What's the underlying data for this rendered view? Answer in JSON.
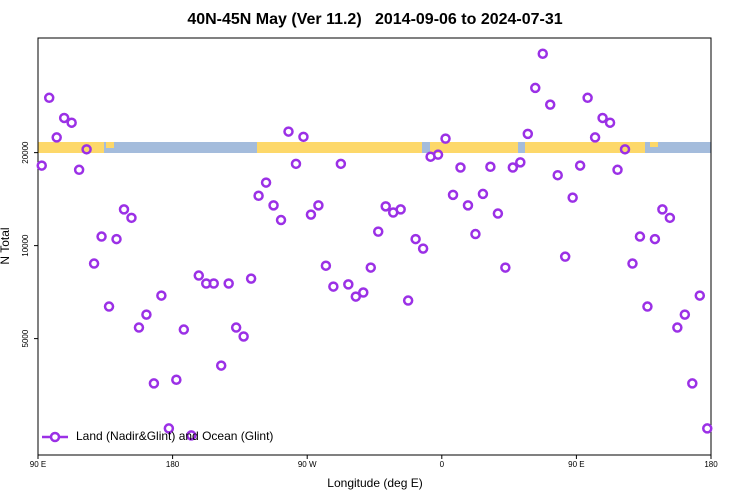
{
  "chart_data": {
    "type": "scatter",
    "title": "40N-45N May (Ver 11.2)   2014-09-06 to 2024-07-31",
    "x_label": "Longitude (deg E)",
    "y_label": "N Total",
    "log_y": true,
    "legend": "bottom-left",
    "xlim": [
      90,
      540
    ],
    "ylim": [
      2100,
      47000
    ],
    "xticks": [
      {
        "value": 90,
        "label": "90 E"
      },
      180,
      {
        "value": 270,
        "label": "90 W"
      },
      {
        "value": 360,
        "label": "0"
      },
      {
        "value": 450,
        "label": "90 E"
      },
      {
        "value": 540,
        "label": "180"
      }
    ],
    "yticks": [
      5000,
      10000,
      20000
    ],
    "series": [
      {
        "name": "Land (Nadir&Glint) and Ocean (Glint)",
        "color": "#9b30e6",
        "x": [
          92.5,
          97.5,
          102.5,
          107.5,
          112.5,
          117.5,
          122.5,
          127.5,
          132.5,
          137.5,
          142.5,
          147.5,
          152.5,
          157.5,
          162.5,
          167.5,
          172.5,
          177.5,
          182.5,
          187.5,
          192.5,
          197.5,
          202.5,
          207.5,
          212.5,
          217.5,
          222.5,
          227.5,
          232.5,
          237.5,
          242.5,
          247.5,
          252.5,
          257.5,
          262.5,
          267.5,
          272.5,
          277.5,
          282.5,
          287.5,
          292.5,
          297.5,
          302.5,
          307.5,
          312.5,
          317.5,
          322.5,
          327.5,
          332.5,
          337.5,
          342.5,
          347.5,
          352.5,
          357.5,
          362.5,
          367.5,
          372.5,
          377.5,
          382.5,
          387.5,
          392.5,
          397.5,
          402.5,
          407.5,
          412.5,
          417.5,
          422.5,
          427.5,
          432.5,
          437.5,
          442.5,
          447.5,
          452.5,
          457.5,
          462.5,
          467.5,
          472.5,
          477.5,
          482.5,
          487.5,
          492.5,
          497.5,
          502.5,
          507.5,
          512.5,
          517.5,
          522.5,
          527.5,
          532.5,
          537.5
        ],
        "values": [
          18160,
          30100,
          22400,
          25900,
          25000,
          17600,
          20500,
          8750,
          10700,
          6350,
          10500,
          13100,
          12300,
          5430,
          5980,
          3580,
          6890,
          2560,
          3680,
          5350,
          2430,
          8000,
          7540,
          7540,
          4090,
          7540,
          5430,
          5080,
          7820,
          14500,
          16000,
          13500,
          12100,
          23400,
          18400,
          22500,
          12600,
          13500,
          8610,
          7370,
          18400,
          7490,
          6840,
          7050,
          8490,
          11100,
          13400,
          12800,
          13100,
          6640,
          10500,
          9780,
          19400,
          19700,
          22200,
          14600,
          17900,
          13500,
          10900,
          14700,
          18000,
          12700,
          8490,
          17900,
          18600,
          23000,
          32400,
          41800,
          28600,
          16900,
          9210,
          14300,
          18160,
          30100,
          22400,
          25900,
          25000,
          17600,
          20500,
          8750,
          10700,
          6350,
          10500,
          13100,
          12300,
          5430,
          5980,
          3580,
          6890,
          2560
        ]
      }
    ]
  }
}
